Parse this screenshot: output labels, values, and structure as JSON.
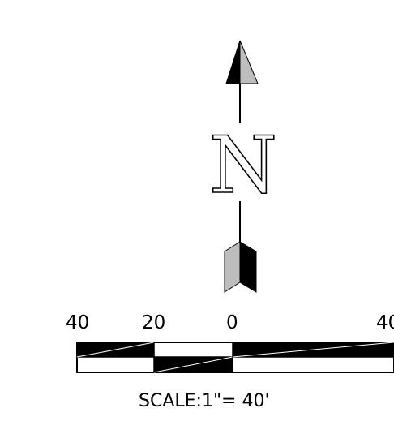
{
  "north_arrow": {
    "letter": "N",
    "tip_colors": {
      "dark": "#000000",
      "light": "#bdbdbd"
    },
    "tail_colors": {
      "dark": "#000000",
      "light": "#bdbdbd"
    }
  },
  "scale_bar": {
    "labels": [
      "40",
      "20",
      "0",
      "40"
    ],
    "caption": "SCALE:1\"= 40'"
  }
}
